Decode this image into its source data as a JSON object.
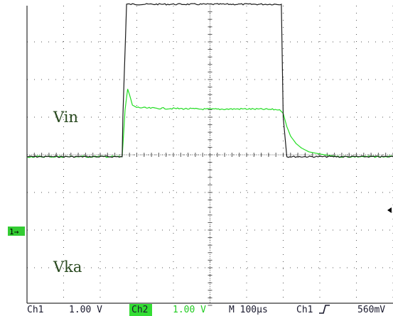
{
  "colors": {
    "background": "#ffffff",
    "grid": "#555555",
    "frame": "#000000",
    "ch1_trace": "#1a1a1a",
    "ch2_trace": "#22dd22",
    "ch2_badge_bg": "#33dd33",
    "status_text": "#1a1a2e",
    "marker_bg": "#33cc33"
  },
  "status_bar": {
    "ch1_label": "Ch1",
    "ch1_scale": "1.00 V",
    "ch2_label": "Ch2",
    "ch2_scale": "1.00 V",
    "timebase": "M 100µs",
    "trigger_source": "Ch1",
    "trigger_slope_icon": "rising-edge-icon",
    "trigger_level": "560mV"
  },
  "ground_marker": {
    "label": "1→"
  },
  "trigger_marker": {
    "icon": "left-arrow-icon"
  },
  "chart_data": {
    "type": "line",
    "x_unit": "divisions",
    "y_unit": "divisions",
    "xlim": [
      0,
      10
    ],
    "ylim": [
      -4,
      4
    ],
    "grid": true,
    "series": [
      {
        "name": "Vin",
        "color": "#1a1a1a",
        "x": [
          0,
          2.6,
          2.62,
          2.72,
          6.95,
          7.0,
          7.1,
          10
        ],
        "y": [
          -0.05,
          -0.05,
          1.0,
          4.0,
          4.0,
          1.0,
          -0.05,
          -0.05
        ]
      },
      {
        "name": "Vka",
        "color": "#22dd22",
        "x": [
          0,
          2.6,
          2.68,
          2.75,
          2.8,
          2.88,
          3.0,
          3.3,
          4.0,
          5.0,
          6.0,
          6.9,
          7.0,
          7.1,
          7.2,
          7.35,
          7.5,
          7.7,
          8.0,
          8.5,
          10
        ],
        "y": [
          -0.05,
          -0.05,
          1.2,
          1.75,
          1.6,
          1.32,
          1.26,
          1.24,
          1.23,
          1.21,
          1.22,
          1.2,
          1.1,
          0.75,
          0.5,
          0.3,
          0.18,
          0.08,
          0.02,
          -0.05,
          -0.05
        ]
      }
    ]
  }
}
